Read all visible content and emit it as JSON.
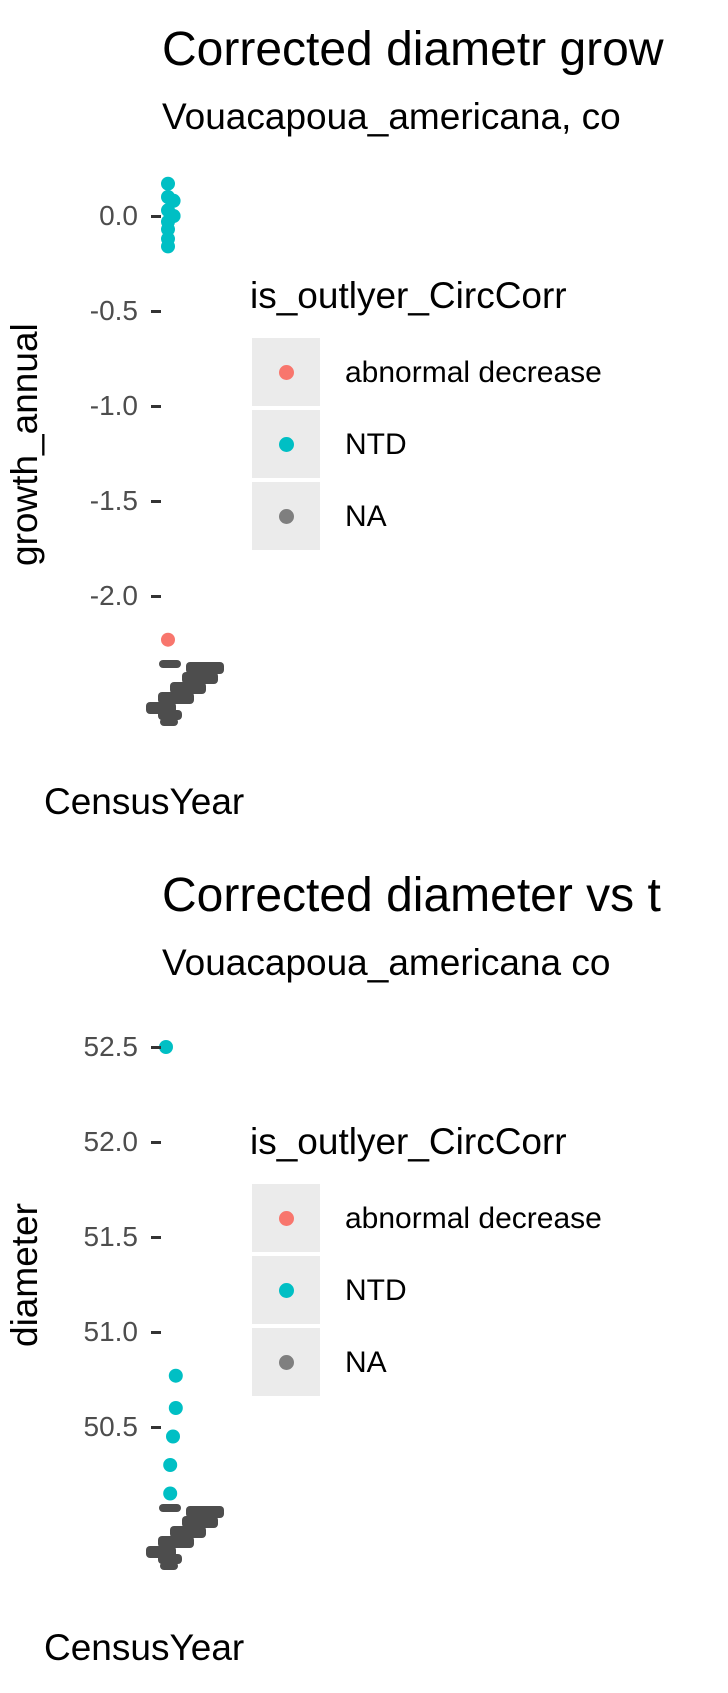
{
  "chart_data": [
    {
      "type": "scatter",
      "title": "Corrected diametr grow",
      "subtitle": "Vouacapoua_americana, co",
      "xlabel": "CensusYear",
      "ylabel": "growth_annual",
      "y_ticks": [
        "0.0",
        "-0.5",
        "-1.0",
        "-1.5",
        "-2.0"
      ],
      "y_tick_values": [
        0.0,
        -0.5,
        -1.0,
        -1.5,
        -2.0
      ],
      "legend": {
        "title": "is_outlyer_CircCorr",
        "items": [
          {
            "label": "abnormal decrease",
            "color": "#F8766D"
          },
          {
            "label": "NTD",
            "color": "#00BFC4"
          },
          {
            "label": "NA",
            "color": "#7F7F7F"
          }
        ]
      },
      "series": [
        {
          "name": "NTD",
          "color": "#00BFC4",
          "points": [
            {
              "x": 0,
              "y": 0.17
            },
            {
              "x": 0,
              "y": 0.1
            },
            {
              "x": 0.4,
              "y": 0.08
            },
            {
              "x": 0,
              "y": 0.03
            },
            {
              "x": 0.4,
              "y": 0.0
            },
            {
              "x": 0,
              "y": -0.03
            },
            {
              "x": 0,
              "y": -0.07
            },
            {
              "x": 0,
              "y": -0.12
            },
            {
              "x": 0,
              "y": -0.16
            }
          ]
        },
        {
          "name": "abnormal decrease",
          "color": "#F8766D",
          "points": [
            {
              "x": 0,
              "y": -2.23
            }
          ]
        }
      ],
      "ylim": [
        -2.5,
        0.25
      ]
    },
    {
      "type": "scatter",
      "title": "Corrected diameter vs t",
      "subtitle": "Vouacapoua_americana co",
      "xlabel": "CensusYear",
      "ylabel": "diameter",
      "y_ticks": [
        "52.5",
        "52.0",
        "51.5",
        "51.0",
        "50.5"
      ],
      "y_tick_values": [
        52.5,
        52.0,
        51.5,
        51.0,
        50.5
      ],
      "legend": {
        "title": "is_outlyer_CircCorr",
        "items": [
          {
            "label": "abnormal decrease",
            "color": "#F8766D"
          },
          {
            "label": "NTD",
            "color": "#00BFC4"
          },
          {
            "label": "NA",
            "color": "#7F7F7F"
          }
        ]
      },
      "series": [
        {
          "name": "NTD",
          "color": "#00BFC4",
          "points": [
            {
              "x": 0,
              "y": 52.5
            },
            {
              "x": 0.7,
              "y": 50.77
            },
            {
              "x": 0.7,
              "y": 50.6
            },
            {
              "x": 0.5,
              "y": 50.45
            },
            {
              "x": 0.3,
              "y": 50.3
            },
            {
              "x": 0.3,
              "y": 50.15
            }
          ]
        }
      ],
      "ylim": [
        49.7,
        52.6
      ]
    }
  ]
}
